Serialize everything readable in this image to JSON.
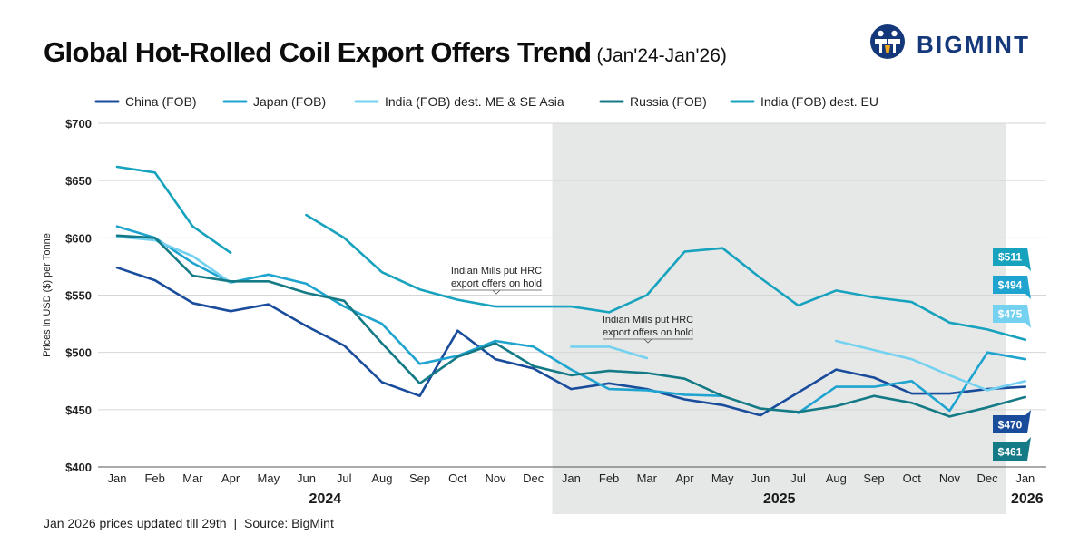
{
  "header": {
    "title": "Global Hot-Rolled Coil Export Offers Trend",
    "subtitle": "(Jan'24-Jan'26)",
    "logo_text": "BIGMINT"
  },
  "footer": {
    "note": "Jan 2026 prices updated till 29th",
    "separator": "|",
    "source": "Source: BigMint"
  },
  "chart_data": {
    "type": "line",
    "categories": [
      "Jan",
      "Feb",
      "Mar",
      "Apr",
      "May",
      "Jun",
      "Jul",
      "Aug",
      "Sep",
      "Oct",
      "Nov",
      "Dec",
      "Jan",
      "Feb",
      "Mar",
      "Apr",
      "May",
      "Jun",
      "Jul",
      "Aug",
      "Sep",
      "Oct",
      "Nov",
      "Dec",
      "Jan"
    ],
    "years": [
      {
        "label": "2024",
        "from": 0,
        "to": 11
      },
      {
        "label": "2025",
        "from": 12,
        "to": 23
      },
      {
        "label": "2026",
        "from": 24,
        "to": 24
      }
    ],
    "ylabel": "Prices in USD ($) per Tonne",
    "ylim": [
      400,
      700
    ],
    "yticks": [
      400,
      450,
      500,
      550,
      600,
      650,
      700
    ],
    "ytick_labels": [
      "$400",
      "$450",
      "$500",
      "$550",
      "$600",
      "$650",
      "$700"
    ],
    "grid": "horizontal",
    "legend_position": "top",
    "shaded_range": [
      12,
      23
    ],
    "shade_color": "#e6e8e8",
    "series": [
      {
        "name": "China (FOB)",
        "color": "#1a4c9c",
        "values": [
          574,
          563,
          543,
          536,
          542,
          523,
          506,
          474,
          462,
          519,
          494,
          486,
          468,
          473,
          468,
          459,
          454,
          445,
          465,
          485,
          478,
          464,
          464,
          468,
          470
        ]
      },
      {
        "name": "Japan (FOB)",
        "color": "#1fa3cf",
        "values": [
          610,
          600,
          578,
          561,
          568,
          560,
          540,
          525,
          490,
          497,
          510,
          505,
          485,
          468,
          467,
          463,
          462,
          null,
          447,
          470,
          470,
          475,
          449,
          500,
          494
        ]
      },
      {
        "name": "India (FOB) dest. ME & SE Asia",
        "color": "#74d1f0",
        "values": [
          601,
          598,
          584,
          561,
          null,
          null,
          null,
          null,
          null,
          null,
          535,
          null,
          505,
          505,
          495,
          null,
          null,
          null,
          null,
          510,
          502,
          494,
          480,
          467,
          475
        ]
      },
      {
        "name": "Russia (FOB)",
        "color": "#147a86",
        "values": [
          602,
          600,
          567,
          562,
          562,
          552,
          545,
          508,
          473,
          496,
          508,
          488,
          480,
          484,
          482,
          477,
          462,
          451,
          448,
          453,
          462,
          456,
          444,
          452,
          461
        ]
      },
      {
        "name": "India (FOB) dest. EU",
        "color": "#17a2bd",
        "values": [
          662,
          657,
          610,
          587,
          null,
          620,
          600,
          570,
          555,
          546,
          540,
          540,
          540,
          535,
          550,
          588,
          591,
          565,
          541,
          554,
          548,
          544,
          526,
          520,
          511
        ]
      }
    ],
    "end_labels": [
      {
        "text": "$511",
        "series": "India (FOB) dest. EU",
        "value": 511
      },
      {
        "text": "$494",
        "series": "Japan (FOB)",
        "value": 494
      },
      {
        "text": "$475",
        "series": "India (FOB) dest. ME & SE Asia",
        "value": 475
      },
      {
        "text": "$470",
        "series": "China (FOB)",
        "value": 470
      },
      {
        "text": "$461",
        "series": "Russia (FOB)",
        "value": 461
      }
    ],
    "annotations": [
      {
        "lines": [
          "Indian Mills put HRC",
          "export offers on hold"
        ],
        "x_index": 10,
        "value": 555
      },
      {
        "lines": [
          "Indian Mills put HRC",
          "export offers on hold"
        ],
        "x_index": 14,
        "value": 510
      }
    ]
  }
}
